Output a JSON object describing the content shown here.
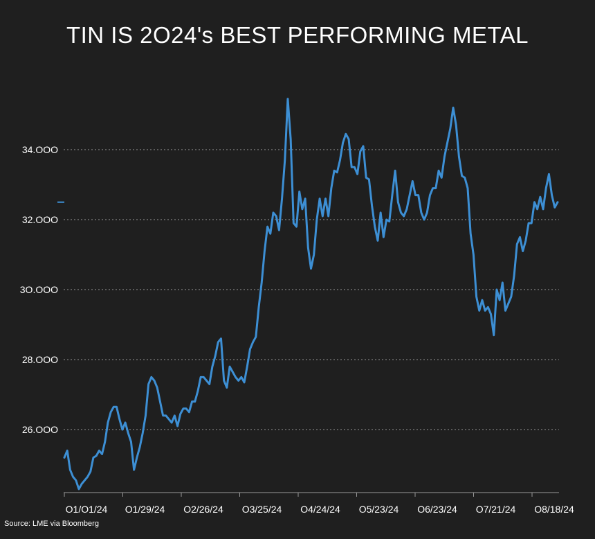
{
  "title": "TIN IS 2O24's BEST PERFORMING METAL",
  "source": "Source: LME via Bloomberg",
  "colors": {
    "background": "#1f1f1f",
    "line": "#3d8fd4",
    "grid": "#9a9a9a",
    "text": "#ffffff"
  },
  "chart_data": {
    "type": "line",
    "title": "TIN IS 2O24's BEST PERFORMING METAL",
    "xlabel": "",
    "ylabel": "",
    "x_tick_labels": [
      "O1/O1/24",
      "O1/29/24",
      "O2/26/24",
      "O3/25/24",
      "O4/24/24",
      "O5/23/24",
      "O6/23/24",
      "O7/21/24",
      "O8/18/24"
    ],
    "y_tick_values": [
      26000,
      28000,
      30000,
      32000,
      34000
    ],
    "y_tick_labels": [
      "26.OOO",
      "28.OOO",
      "3O.OOO",
      "32.OOO",
      "34.OOO"
    ],
    "ylim": [
      24200,
      36000
    ],
    "grid": "horizontal dotted",
    "latest_value_marker": 32500,
    "series": [
      {
        "values": [
          25200,
          25400,
          24850,
          24650,
          24550,
          24300,
          24450,
          24550,
          24650,
          24800,
          25200,
          25250,
          25400,
          25300,
          25650,
          26200,
          26500,
          26650,
          26650,
          26300,
          26000,
          26200,
          25900,
          25650,
          24850,
          25200,
          25500,
          25900,
          26400,
          27300,
          27500,
          27400,
          27200,
          26800,
          26400,
          26400,
          26300,
          26200,
          26400,
          26100,
          26450,
          26600,
          26600,
          26500,
          26800,
          26800,
          27100,
          27500,
          27500,
          27400,
          27300,
          27800,
          28100,
          28500,
          28600,
          27400,
          27200,
          27800,
          27650,
          27500,
          27400,
          27500,
          27350,
          27800,
          28300,
          28500,
          28650,
          29500,
          30200,
          31100,
          31800,
          31600,
          32200,
          32100,
          31700,
          32600,
          33700,
          35450,
          34300,
          31900,
          31800,
          32800,
          32300,
          32600,
          31200,
          30600,
          31000,
          32000,
          32600,
          32100,
          32600,
          32100,
          32900,
          33400,
          33350,
          33700,
          34200,
          34450,
          34300,
          33500,
          33500,
          33300,
          33950,
          34100,
          33200,
          33150,
          32400,
          31800,
          31400,
          32200,
          31500,
          32000,
          31950,
          32700,
          33400,
          32500,
          32200,
          32100,
          32300,
          32700,
          33100,
          32700,
          32700,
          32200,
          32000,
          32200,
          32700,
          32900,
          32900,
          33400,
          33200,
          33800,
          34200,
          34600,
          35200,
          34700,
          33800,
          33250,
          33200,
          32900,
          31600,
          31000,
          29800,
          29400,
          29700,
          29400,
          29500,
          29300,
          28700,
          30000,
          29700,
          30200,
          29400,
          29600,
          29800,
          30400,
          31300,
          31500,
          31100,
          31400,
          31900,
          31900,
          32500,
          32300,
          32650,
          32300,
          32900,
          33300,
          32700,
          32350,
          32500
        ]
      }
    ]
  }
}
